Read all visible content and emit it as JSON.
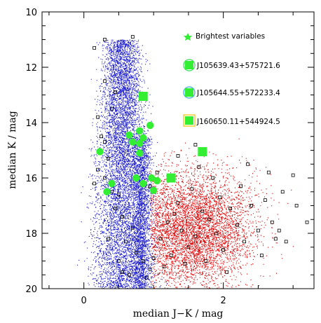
{
  "chart_data": {
    "type": "scatter",
    "xlabel": "median J−K / mag",
    "ylabel": "median K / mag",
    "xlim": [
      -0.6,
      3.3
    ],
    "ylim": [
      20,
      10
    ],
    "y_inverted": true,
    "x_ticks": [
      0,
      2
    ],
    "x_tick_labels": [
      "0",
      "2"
    ],
    "y_ticks": [
      10,
      12,
      14,
      16,
      18,
      20
    ],
    "y_tick_labels": [
      "10",
      "12",
      "14",
      "16",
      "18",
      "20"
    ],
    "colors": {
      "blue_population": "#1a1acc",
      "red_population": "#e00000",
      "highlight": "#33ee33",
      "frame": "#000000"
    },
    "series": [
      {
        "marker": "open-square",
        "color": "#000000",
        "points": [
          [
            0.15,
            11.3
          ],
          [
            0.3,
            11.0
          ],
          [
            0.3,
            12.5
          ],
          [
            0.4,
            13.5
          ],
          [
            0.2,
            13.8
          ],
          [
            0.25,
            14.5
          ],
          [
            0.35,
            15.3
          ],
          [
            0.3,
            16.0
          ],
          [
            0.15,
            16.2
          ],
          [
            0.5,
            16.6
          ],
          [
            0.45,
            17.1
          ],
          [
            0.55,
            17.4
          ],
          [
            0.7,
            17.8
          ],
          [
            0.6,
            18.3
          ],
          [
            0.75,
            18.7
          ],
          [
            0.85,
            19.0
          ],
          [
            0.65,
            19.5
          ],
          [
            0.95,
            19.3
          ],
          [
            1.0,
            18.9
          ],
          [
            1.1,
            18.2
          ],
          [
            1.2,
            17.6
          ],
          [
            1.3,
            17.3
          ],
          [
            1.4,
            17.9
          ],
          [
            1.5,
            18.5
          ],
          [
            1.6,
            18.1
          ],
          [
            1.7,
            17.2
          ],
          [
            1.8,
            17.5
          ],
          [
            1.9,
            18.0
          ],
          [
            2.0,
            18.6
          ],
          [
            2.1,
            17.1
          ],
          [
            2.2,
            17.7
          ],
          [
            2.3,
            18.3
          ],
          [
            2.4,
            17.0
          ],
          [
            2.5,
            17.9
          ],
          [
            2.6,
            16.8
          ],
          [
            2.7,
            17.6
          ],
          [
            2.85,
            16.5
          ],
          [
            3.0,
            15.9
          ],
          [
            3.2,
            17.6
          ],
          [
            2.9,
            18.3
          ],
          [
            1.55,
            16.4
          ],
          [
            1.65,
            15.6
          ],
          [
            1.35,
            16.9
          ],
          [
            1.25,
            18.8
          ],
          [
            1.15,
            19.2
          ],
          [
            0.9,
            19.6
          ],
          [
            0.55,
            19.4
          ],
          [
            1.45,
            19.1
          ],
          [
            1.75,
            19.0
          ],
          [
            2.05,
            19.4
          ],
          [
            1.95,
            16.7
          ],
          [
            2.25,
            16.3
          ],
          [
            2.55,
            18.8
          ],
          [
            2.75,
            18.2
          ],
          [
            0.7,
            10.9
          ],
          [
            0.45,
            12.9
          ],
          [
            0.3,
            14.7
          ],
          [
            0.2,
            15.7
          ],
          [
            0.95,
            16.3
          ],
          [
            1.05,
            15.8
          ],
          [
            1.35,
            15.2
          ],
          [
            1.6,
            14.8
          ],
          [
            1.85,
            16.0
          ],
          [
            2.35,
            15.5
          ],
          [
            2.65,
            15.8
          ],
          [
            3.05,
            17.0
          ],
          [
            0.5,
            19.0
          ],
          [
            0.35,
            18.2
          ],
          [
            0.4,
            16.5
          ],
          [
            2.8,
            17.9
          ]
        ]
      },
      {
        "name": "Brightest variables",
        "marker": "filled-circle",
        "color": "#33ee33",
        "points": [
          [
            0.85,
            13.05
          ],
          [
            0.95,
            14.1
          ],
          [
            0.8,
            14.3
          ],
          [
            0.65,
            14.45
          ],
          [
            0.85,
            14.55
          ],
          [
            0.7,
            14.7
          ],
          [
            0.8,
            14.75
          ],
          [
            0.23,
            15.05
          ],
          [
            1.7,
            15.05
          ],
          [
            0.8,
            15.1
          ],
          [
            0.75,
            16.0
          ],
          [
            0.97,
            16.0
          ],
          [
            1.05,
            16.1
          ],
          [
            1.25,
            16.0
          ],
          [
            0.85,
            16.2
          ],
          [
            0.4,
            16.2
          ],
          [
            1.0,
            16.45
          ],
          [
            0.33,
            16.5
          ]
        ]
      }
    ],
    "legend": {
      "placement": "top-right",
      "entries": [
        {
          "label": "Brightest variables"
        },
        {
          "label": "J105639.43+575721.6"
        },
        {
          "label": "J105644.55+572233.4"
        },
        {
          "label": "J160650.11+544924.5"
        }
      ]
    }
  }
}
